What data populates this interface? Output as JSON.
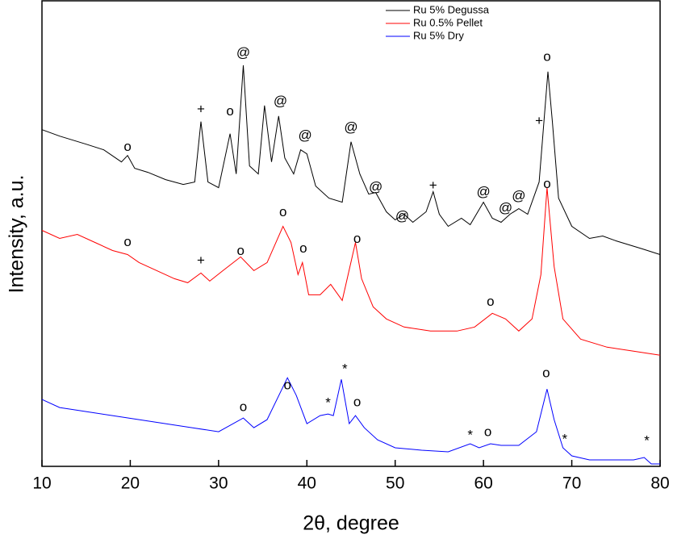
{
  "chart_data": {
    "type": "line",
    "x_label": "2θ, degree",
    "y_label": "Intensity, a.u.",
    "xlim": [
      10,
      80
    ],
    "xticks": [
      10,
      20,
      30,
      40,
      50,
      60,
      70,
      80
    ],
    "ylim": [
      0,
      578
    ],
    "grid": false,
    "legend": "top-right",
    "series": [
      {
        "name": "Ru 5% Degussa",
        "color": "#000000",
        "x": [
          10,
          12,
          15,
          17,
          19,
          19.7,
          20.5,
          22,
          24,
          26,
          27.3,
          28,
          28.8,
          30,
          31.3,
          32,
          32.8,
          33.5,
          34.5,
          35.2,
          36,
          36.8,
          37.5,
          38.5,
          39.3,
          40,
          41,
          42.5,
          44,
          45,
          46,
          47,
          47.8,
          49,
          50,
          51,
          52,
          53.5,
          54.3,
          55,
          56,
          57.5,
          58.5,
          60,
          61,
          62,
          63,
          64,
          65,
          66.3,
          67.3,
          67.8,
          68.5,
          70,
          72,
          73.5,
          75,
          78,
          80
        ],
        "values": [
          418,
          410,
          400,
          393,
          378,
          386,
          370,
          365,
          356,
          350,
          353,
          428,
          353,
          346,
          413,
          363,
          498,
          373,
          363,
          448,
          378,
          435,
          383,
          363,
          393,
          388,
          348,
          333,
          328,
          403,
          363,
          338,
          340,
          316,
          306,
          313,
          303,
          316,
          341,
          313,
          298,
          308,
          300,
          328,
          308,
          303,
          313,
          320,
          313,
          353,
          490,
          428,
          333,
          298,
          283,
          286,
          280,
          270,
          263
        ]
      },
      {
        "name": "Ru 0.5% Pellet",
        "color": "#ff0000",
        "x": [
          10,
          12,
          14,
          16,
          18,
          19.7,
          21,
          23,
          25,
          26.5,
          28,
          29,
          30.5,
          32.5,
          34,
          35.5,
          37.3,
          38.2,
          39,
          39.5,
          40.2,
          41.5,
          42.7,
          44,
          45.5,
          46.2,
          47.5,
          49,
          51,
          54,
          57,
          59,
          61,
          62.5,
          64,
          65.5,
          66.5,
          67.2,
          68,
          69,
          71,
          74,
          77,
          80
        ],
        "values": [
          293,
          283,
          288,
          278,
          268,
          263,
          253,
          243,
          233,
          228,
          240,
          230,
          243,
          260,
          243,
          253,
          298,
          278,
          238,
          253,
          213,
          213,
          226,
          206,
          278,
          233,
          198,
          183,
          173,
          168,
          168,
          173,
          190,
          183,
          168,
          183,
          238,
          346,
          248,
          183,
          158,
          148,
          143,
          138
        ]
      },
      {
        "name": "Ru 5% Dry",
        "color": "#0000ff",
        "x": [
          10,
          12,
          15,
          18,
          21,
          24,
          27,
          30,
          32.8,
          34,
          35.5,
          37.8,
          38.8,
          40,
          41.5,
          42.4,
          43,
          43.9,
          44.8,
          45.5,
          46.5,
          48,
          50,
          53,
          56,
          58.5,
          59.5,
          60.8,
          62,
          64,
          66,
          67.2,
          68,
          69,
          70,
          72,
          75,
          77,
          78.2,
          79,
          80
        ],
        "values": [
          83,
          73,
          68,
          63,
          58,
          53,
          48,
          43,
          60,
          48,
          58,
          110,
          88,
          53,
          63,
          65,
          63,
          108,
          53,
          63,
          48,
          33,
          23,
          20,
          18,
          28,
          23,
          28,
          26,
          26,
          43,
          96,
          58,
          23,
          13,
          8,
          8,
          8,
          11,
          3,
          3
        ]
      }
    ],
    "annotations": [
      {
        "text": "o",
        "x": 19.7,
        "y": 396
      },
      {
        "text": "+",
        "x": 28,
        "y": 443
      },
      {
        "text": "o",
        "x": 31.3,
        "y": 440
      },
      {
        "text": "@",
        "x": 32.8,
        "y": 513
      },
      {
        "text": "@",
        "x": 37,
        "y": 453
      },
      {
        "text": "@",
        "x": 39.8,
        "y": 410
      },
      {
        "text": "@",
        "x": 45,
        "y": 420
      },
      {
        "text": "@",
        "x": 47.8,
        "y": 346
      },
      {
        "text": "+",
        "x": 54.3,
        "y": 348
      },
      {
        "text": "@",
        "x": 50.8,
        "y": 310
      },
      {
        "text": "@",
        "x": 60,
        "y": 340
      },
      {
        "text": "@",
        "x": 62.5,
        "y": 320
      },
      {
        "text": "@",
        "x": 64,
        "y": 335
      },
      {
        "text": "+",
        "x": 66.3,
        "y": 428
      },
      {
        "text": "o",
        "x": 67.2,
        "y": 508
      },
      {
        "text": "o",
        "x": 19.7,
        "y": 278
      },
      {
        "text": "+",
        "x": 28,
        "y": 255
      },
      {
        "text": "o",
        "x": 32.5,
        "y": 267
      },
      {
        "text": "o",
        "x": 37.3,
        "y": 315
      },
      {
        "text": "o",
        "x": 39.6,
        "y": 270
      },
      {
        "text": "o",
        "x": 45.7,
        "y": 282
      },
      {
        "text": "o",
        "x": 60.8,
        "y": 204
      },
      {
        "text": "o",
        "x": 67.2,
        "y": 350
      },
      {
        "text": "o",
        "x": 32.8,
        "y": 73
      },
      {
        "text": "o",
        "x": 37.8,
        "y": 100
      },
      {
        "text": "*",
        "x": 42.4,
        "y": 78
      },
      {
        "text": "*",
        "x": 44.3,
        "y": 120
      },
      {
        "text": "o",
        "x": 45.7,
        "y": 79
      },
      {
        "text": "*",
        "x": 58.5,
        "y": 38
      },
      {
        "text": "o",
        "x": 60.5,
        "y": 42
      },
      {
        "text": "o",
        "x": 67.1,
        "y": 115
      },
      {
        "text": "*",
        "x": 69.2,
        "y": 33
      },
      {
        "text": "*",
        "x": 78.5,
        "y": 31
      }
    ]
  }
}
